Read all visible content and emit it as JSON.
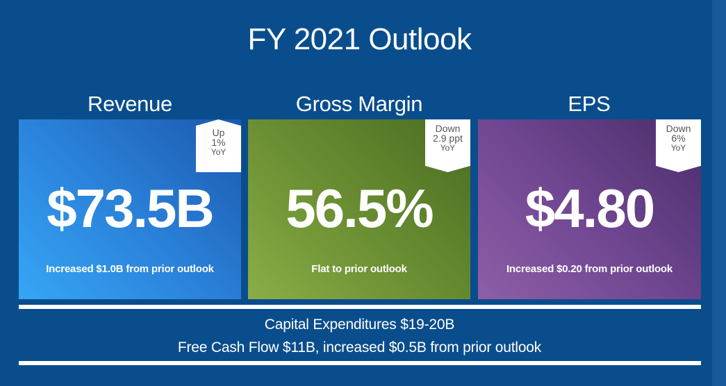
{
  "title": "FY 2021 Outlook",
  "cards": [
    {
      "heading": "Revenue",
      "value": "$73.5B",
      "note": "Increased $1.0B from prior outlook",
      "badge": {
        "line1": "Up",
        "line2": "1%",
        "line3": "YoY",
        "direction": "up"
      },
      "color": "#2a80d8"
    },
    {
      "heading": "Gross Margin",
      "value": "56.5%",
      "note": "Flat to prior outlook",
      "badge": {
        "line1": "Down",
        "line2": "2.9 ppt",
        "line3": "YoY",
        "direction": "down"
      },
      "color": "#6b8f33"
    },
    {
      "heading": "EPS",
      "value": "$4.80",
      "note": "Increased $0.20 from prior outlook",
      "badge": {
        "line1": "Down",
        "line2": "6%",
        "line3": "YoY",
        "direction": "down"
      },
      "color": "#6e4590"
    }
  ],
  "footer": {
    "line1": "Capital Expenditures $19-20B",
    "line2": "Free Cash Flow $11B, increased $0.5B from prior outlook"
  },
  "colors": {
    "background": "#0a4d8c",
    "text": "#ffffff",
    "badge": "#ffffff"
  }
}
